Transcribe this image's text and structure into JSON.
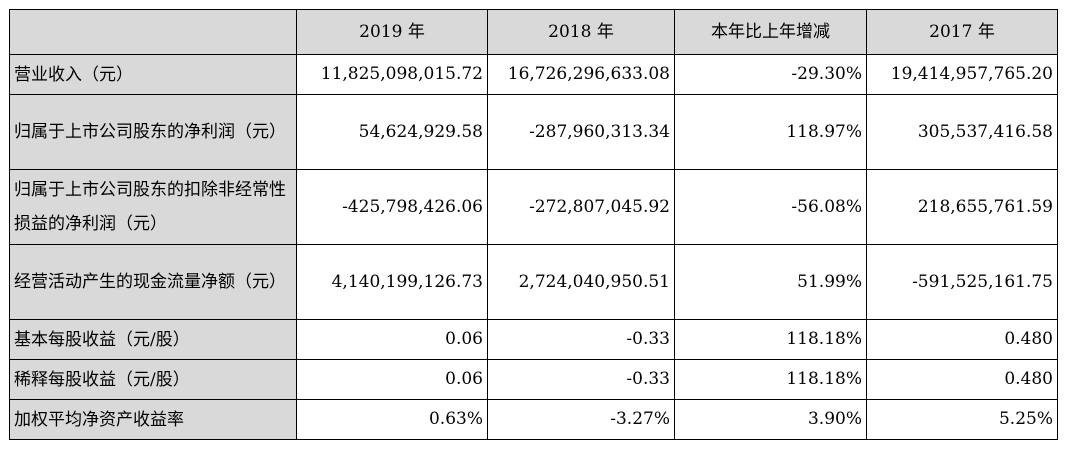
{
  "table": {
    "headers": [
      "",
      "2019 年",
      "2018 年",
      "本年比上年增减",
      "2017 年"
    ],
    "rows": [
      {
        "label": "营业收入（元）",
        "values": [
          "11,825,098,015.72",
          "16,726,296,633.08",
          "-29.30%",
          "19,414,957,765.20"
        ]
      },
      {
        "label": "归属于上市公司股东的净利润（元）",
        "values": [
          "54,624,929.58",
          "-287,960,313.34",
          "118.97%",
          "305,537,416.58"
        ]
      },
      {
        "label": "归属于上市公司股东的扣除非经常性损益的净利润（元）",
        "values": [
          "-425,798,426.06",
          "-272,807,045.92",
          "-56.08%",
          "218,655,761.59"
        ]
      },
      {
        "label": "经营活动产生的现金流量净额（元）",
        "values": [
          "4,140,199,126.73",
          "2,724,040,950.51",
          "51.99%",
          "-591,525,161.75"
        ]
      },
      {
        "label": "基本每股收益（元/股）",
        "values": [
          "0.06",
          "-0.33",
          "118.18%",
          "0.480"
        ]
      },
      {
        "label": "稀释每股收益（元/股）",
        "values": [
          "0.06",
          "-0.33",
          "118.18%",
          "0.480"
        ]
      },
      {
        "label": "加权平均净资产收益率",
        "values": [
          "0.63%",
          "-3.27%",
          "3.90%",
          "5.25%"
        ]
      }
    ]
  }
}
